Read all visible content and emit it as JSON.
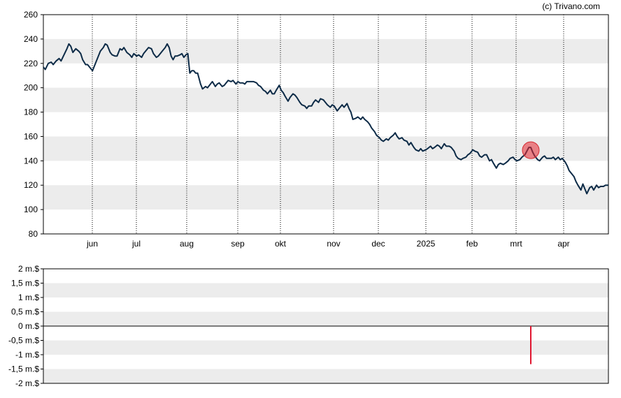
{
  "copyright": "(c) Trivano.com",
  "chart_data": [
    {
      "type": "line",
      "ylim": [
        80,
        260
      ],
      "y_ticks": [
        80,
        100,
        120,
        140,
        160,
        180,
        200,
        220,
        240,
        260
      ],
      "x_ticks": [
        "jun",
        "jul",
        "aug",
        "sep",
        "okt",
        "nov",
        "dec",
        "2025",
        "feb",
        "mrt",
        "apr"
      ],
      "grid": "horizontal bands, dotted vertical",
      "series": [
        {
          "color": "#0d2b47",
          "points": [
            [
              0,
              217
            ],
            [
              2,
              215
            ],
            [
              5,
              220
            ],
            [
              8,
              221
            ],
            [
              10,
              219
            ],
            [
              13,
              222
            ],
            [
              16,
              224
            ],
            [
              18,
              222
            ],
            [
              21,
              227
            ],
            [
              24,
              232
            ],
            [
              26,
              236
            ],
            [
              28,
              234
            ],
            [
              30,
              229
            ],
            [
              33,
              232
            ],
            [
              36,
              230
            ],
            [
              38,
              228
            ],
            [
              40,
              223
            ],
            [
              43,
              219
            ],
            [
              45,
              219
            ],
            [
              47,
              217
            ],
            [
              50,
              214
            ],
            [
              53,
              220
            ],
            [
              55,
              224
            ],
            [
              58,
              230
            ],
            [
              61,
              233
            ],
            [
              63,
              236
            ],
            [
              65,
              235
            ],
            [
              68,
              229
            ],
            [
              70,
              227
            ],
            [
              73,
              226
            ],
            [
              75,
              226
            ],
            [
              78,
              232
            ],
            [
              80,
              231
            ],
            [
              82,
              233
            ],
            [
              85,
              229
            ],
            [
              88,
              227
            ],
            [
              90,
              225
            ],
            [
              92,
              228
            ],
            [
              95,
              226
            ],
            [
              97,
              227
            ],
            [
              100,
              225
            ],
            [
              102,
              228
            ],
            [
              105,
              231
            ],
            [
              107,
              233
            ],
            [
              110,
              232
            ],
            [
              112,
              228
            ],
            [
              115,
              225
            ],
            [
              117,
              226
            ],
            [
              119,
              228
            ],
            [
              121,
              230
            ],
            [
              124,
              233
            ],
            [
              126,
              236
            ],
            [
              128,
              233
            ],
            [
              130,
              226
            ],
            [
              132,
              223
            ],
            [
              134,
              226
            ],
            [
              136,
              226
            ],
            [
              139,
              227
            ],
            [
              141,
              228
            ],
            [
              143,
              225
            ],
            [
              145,
              227
            ],
            [
              147,
              228
            ],
            [
              148,
              220
            ],
            [
              149,
              212
            ],
            [
              151,
              214
            ],
            [
              153,
              214
            ],
            [
              155,
              212
            ],
            [
              157,
              212
            ],
            [
              160,
              203
            ],
            [
              162,
              199
            ],
            [
              165,
              201
            ],
            [
              167,
              200
            ],
            [
              170,
              203
            ],
            [
              172,
              205
            ],
            [
              175,
              201
            ],
            [
              177,
              203
            ],
            [
              179,
              204
            ],
            [
              182,
              201
            ],
            [
              184,
              202
            ],
            [
              186,
              204
            ],
            [
              188,
              206
            ],
            [
              191,
              205
            ],
            [
              193,
              206
            ],
            [
              196,
              203
            ],
            [
              198,
              205
            ],
            [
              200,
              204
            ],
            [
              203,
              204
            ],
            [
              205,
              203
            ],
            [
              207,
              205
            ],
            [
              210,
              205
            ],
            [
              212,
              205
            ],
            [
              214,
              205
            ],
            [
              217,
              204
            ],
            [
              219,
              202
            ],
            [
              221,
              201
            ],
            [
              224,
              198
            ],
            [
              226,
              197
            ],
            [
              228,
              195
            ],
            [
              231,
              198
            ],
            [
              233,
              195
            ],
            [
              235,
              195
            ],
            [
              237,
              198
            ],
            [
              240,
              202
            ],
            [
              242,
              198
            ],
            [
              244,
              196
            ],
            [
              246,
              193
            ],
            [
              249,
              189
            ],
            [
              251,
              192
            ],
            [
              254,
              195
            ],
            [
              256,
              194
            ],
            [
              258,
              192
            ],
            [
              261,
              188
            ],
            [
              263,
              186
            ],
            [
              266,
              185
            ],
            [
              268,
              183
            ],
            [
              270,
              185
            ],
            [
              273,
              185
            ],
            [
              275,
              188
            ],
            [
              277,
              190
            ],
            [
              280,
              188
            ],
            [
              282,
              191
            ],
            [
              285,
              190
            ],
            [
              287,
              188
            ],
            [
              289,
              186
            ],
            [
              292,
              184
            ],
            [
              294,
              186
            ],
            [
              296,
              185
            ],
            [
              299,
              181
            ],
            [
              301,
              183
            ],
            [
              304,
              186
            ],
            [
              306,
              184
            ],
            [
              309,
              187
            ],
            [
              311,
              183
            ],
            [
              313,
              180
            ],
            [
              315,
              174
            ],
            [
              318,
              175
            ],
            [
              320,
              176
            ],
            [
              323,
              174
            ],
            [
              325,
              176
            ],
            [
              327,
              174
            ],
            [
              330,
              172
            ],
            [
              332,
              170
            ],
            [
              334,
              167
            ],
            [
              337,
              164
            ],
            [
              339,
              161
            ],
            [
              342,
              159
            ],
            [
              344,
              157
            ],
            [
              346,
              156
            ],
            [
              349,
              158
            ],
            [
              351,
              157
            ],
            [
              353,
              159
            ],
            [
              356,
              161
            ],
            [
              358,
              163
            ],
            [
              360,
              160
            ],
            [
              362,
              158
            ],
            [
              365,
              159
            ],
            [
              367,
              157
            ],
            [
              370,
              156
            ],
            [
              372,
              153
            ],
            [
              374,
              155
            ],
            [
              377,
              151
            ],
            [
              379,
              149
            ],
            [
              382,
              148
            ],
            [
              384,
              150
            ],
            [
              386,
              148
            ],
            [
              389,
              149
            ],
            [
              391,
              150
            ],
            [
              394,
              152
            ],
            [
              396,
              150
            ],
            [
              398,
              151
            ],
            [
              401,
              153
            ],
            [
              403,
              152
            ],
            [
              405,
              150
            ],
            [
              408,
              154
            ],
            [
              410,
              152
            ],
            [
              413,
              152
            ],
            [
              415,
              151
            ],
            [
              418,
              148
            ],
            [
              420,
              144
            ],
            [
              422,
              142
            ],
            [
              425,
              141
            ],
            [
              427,
              142
            ],
            [
              430,
              143
            ],
            [
              432,
              145
            ],
            [
              434,
              146
            ],
            [
              437,
              149
            ],
            [
              439,
              148
            ],
            [
              442,
              147
            ],
            [
              444,
              144
            ],
            [
              446,
              143
            ],
            [
              449,
              145
            ],
            [
              451,
              145
            ],
            [
              454,
              140
            ],
            [
              456,
              141
            ],
            [
              458,
              138
            ],
            [
              461,
              134
            ],
            [
              463,
              137
            ],
            [
              465,
              138
            ],
            [
              468,
              137
            ],
            [
              470,
              138
            ],
            [
              473,
              140
            ],
            [
              475,
              142
            ],
            [
              478,
              143
            ],
            [
              480,
              141
            ],
            [
              482,
              140
            ],
            [
              485,
              141
            ],
            [
              487,
              143
            ],
            [
              490,
              145
            ],
            [
              492,
              148
            ],
            [
              494,
              151
            ],
            [
              496,
              151
            ],
            [
              498,
              147
            ],
            [
              500,
              144
            ],
            [
              503,
              141
            ],
            [
              505,
              140
            ],
            [
              508,
              143
            ],
            [
              510,
              144
            ],
            [
              512,
              142
            ],
            [
              514,
              142
            ],
            [
              517,
              142
            ],
            [
              519,
              143
            ],
            [
              521,
              141
            ],
            [
              524,
              143
            ],
            [
              526,
              141
            ],
            [
              528,
              142
            ],
            [
              531,
              139
            ],
            [
              533,
              136
            ],
            [
              535,
              132
            ],
            [
              537,
              130
            ],
            [
              540,
              127
            ],
            [
              542,
              123
            ],
            [
              544,
              120
            ],
            [
              547,
              116
            ],
            [
              549,
              121
            ],
            [
              551,
              117
            ],
            [
              553,
              113
            ],
            [
              556,
              118
            ],
            [
              558,
              119
            ],
            [
              560,
              116
            ],
            [
              563,
              120
            ],
            [
              565,
              118
            ],
            [
              567,
              119
            ],
            [
              570,
              119
            ],
            [
              572,
              120
            ],
            [
              575,
              120
            ]
          ]
        }
      ],
      "annotations": [
        {
          "type": "marker",
          "x": 496,
          "y": 151
        }
      ]
    },
    {
      "type": "bar",
      "y_ticks": [
        "2 m.$",
        "1,5 m.$",
        "1 m.$",
        "0,5 m.$",
        "0 m.$",
        "-0,5 m.$",
        "-1 m.$",
        "-1,5 m.$",
        "-2 m.$"
      ],
      "y_tick_values": [
        2,
        1.5,
        1,
        0.5,
        0,
        -0.5,
        -1,
        -1.5,
        -2
      ],
      "ylim": [
        -2,
        2
      ],
      "bars": [
        {
          "x": 496,
          "value": -1.33,
          "color": "#e0152f"
        }
      ]
    }
  ]
}
